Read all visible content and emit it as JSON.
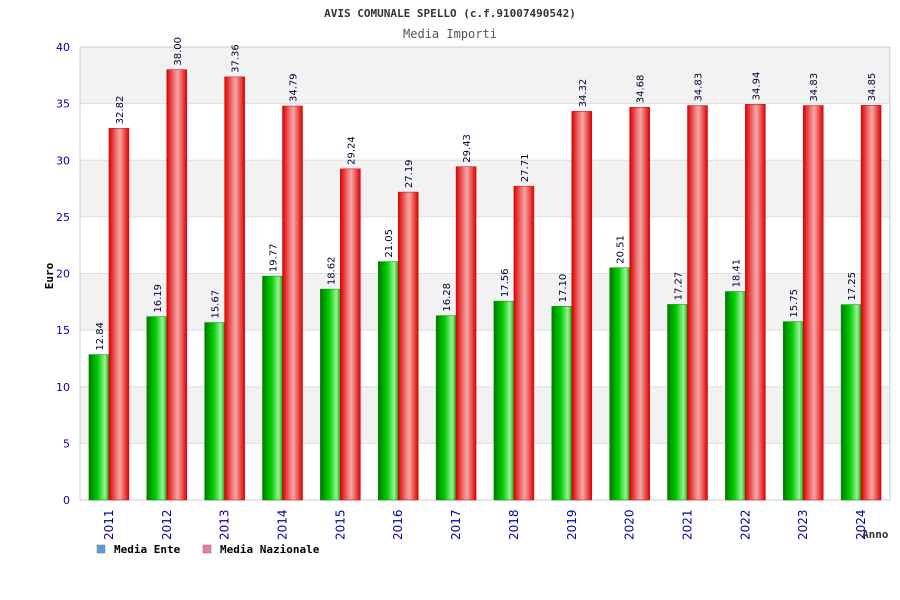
{
  "chart_data": {
    "type": "bar",
    "title": "AVIS COMUNALE SPELLO (c.f.91007490542)",
    "subtitle": "Media Importi",
    "xlabel": "Anno",
    "ylabel": "Euro",
    "ylim": [
      0,
      40
    ],
    "yticks": [
      0,
      5,
      10,
      15,
      20,
      25,
      30,
      35,
      40
    ],
    "grid": true,
    "legend_position": "bottom-left",
    "categories": [
      "2011",
      "2012",
      "2013",
      "2014",
      "2015",
      "2016",
      "2017",
      "2018",
      "2019",
      "2020",
      "2021",
      "2022",
      "2023",
      "2024"
    ],
    "series": [
      {
        "name": "Media Ente",
        "color": "#00cc00",
        "legend_color": "#5b9bd5",
        "values": [
          12.84,
          16.19,
          15.67,
          19.77,
          18.62,
          21.05,
          16.28,
          17.56,
          17.1,
          20.51,
          17.27,
          18.41,
          15.75,
          17.25
        ],
        "labels": [
          "12.84",
          "16.19",
          "15.67",
          "19.77",
          "18.62",
          "21.05",
          "16.28",
          "17.56",
          "17.10",
          "20.51",
          "17.27",
          "18.41",
          "15.75",
          "17.25"
        ]
      },
      {
        "name": "Media Nazionale",
        "color": "#ee1111",
        "legend_color": "#e67fb0",
        "values": [
          32.82,
          38.0,
          37.36,
          34.79,
          29.24,
          27.19,
          29.43,
          27.71,
          34.32,
          34.68,
          34.83,
          34.94,
          34.83,
          34.85
        ],
        "labels": [
          "32.82",
          "38.00",
          "37.36",
          "34.79",
          "29.24",
          "27.19",
          "29.43",
          "27.71",
          "34.32",
          "34.68",
          "34.83",
          "34.94",
          "34.83",
          "34.85"
        ]
      }
    ]
  }
}
